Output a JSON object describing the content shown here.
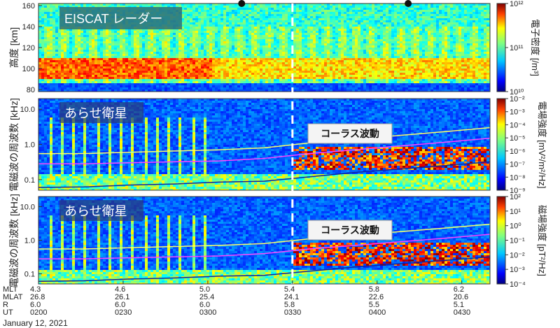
{
  "chart_data": [
    {
      "type": "heatmap",
      "title": "EISCAT レーダー",
      "ylabel": "高度 [km]",
      "yticks": [
        "160",
        "140",
        "120",
        "100",
        "80"
      ],
      "ylim": [
        78,
        162
      ],
      "colorbar": {
        "label": "電子密度 [/m³]",
        "scale": "log",
        "range": [
          10000000000.0,
          1000000000000.0
        ],
        "ticks": [
          "10¹²",
          "10¹¹",
          "10¹⁰"
        ]
      },
      "marker_times": [
        "0312",
        "0411"
      ]
    },
    {
      "type": "heatmap",
      "title": "あらせ衛星",
      "ylabel": "電磁波の周波数 [kHz]",
      "yscale": "log",
      "yticks": [
        "10.0",
        "1.0",
        "0.1"
      ],
      "ylim": [
        0.05,
        20
      ],
      "callout": "コーラス波動",
      "colorbar": {
        "label": "電場強度 [mV²/m²/Hz]",
        "scale": "log",
        "range": [
          1e-09,
          0.01
        ],
        "ticks": [
          "10⁻²",
          "10⁻³",
          "10⁻⁴",
          "10⁻⁵",
          "10⁻⁶",
          "10⁻⁷",
          "10⁻⁸",
          "10⁻⁹"
        ]
      }
    },
    {
      "type": "heatmap",
      "title": "あらせ衛星",
      "ylabel": "電磁波の周波数 [kHz]",
      "yscale": "log",
      "yticks": [
        "10.0",
        "1.0",
        "0.1"
      ],
      "ylim": [
        0.05,
        20
      ],
      "callout": "コーラス波動",
      "colorbar": {
        "label": "磁場強度 [pT²/Hz]",
        "scale": "log",
        "range": [
          0.0001,
          100.0
        ],
        "ticks": [
          "10²",
          "10¹",
          "10⁰",
          "10⁻¹",
          "10⁻²",
          "10⁻³",
          "10⁻⁴"
        ]
      }
    }
  ],
  "overlay_lines": {
    "yellow": [
      0.55,
      0.55,
      0.6,
      0.65,
      0.7,
      0.8,
      1.1,
      1.4,
      1.8,
      2.3,
      3.0
    ],
    "magenta": [
      0.28,
      0.28,
      0.3,
      0.32,
      0.34,
      0.4,
      0.55,
      0.7,
      0.9,
      1.15,
      1.5
    ],
    "blue": [
      0.06,
      0.062,
      0.07,
      0.075,
      0.085,
      0.09,
      0.12,
      0.16,
      0.2,
      0.25,
      0.32
    ]
  },
  "dashed_line_time": "0330",
  "ephemeris": {
    "row_labels": [
      "MLT",
      "MLAT",
      "R",
      "UT"
    ],
    "columns": [
      [
        "4.3",
        "26.8",
        "6.0",
        "0200"
      ],
      [
        "4.6",
        "26.1",
        "6.0",
        "0230"
      ],
      [
        "5.0",
        "25.4",
        "6.0",
        "0300"
      ],
      [
        "5.4",
        "24.1",
        "5.8",
        "0330"
      ],
      [
        "5.8",
        "22.6",
        "5.5",
        "0400"
      ],
      [
        "6.2",
        "20.6",
        "5.1",
        "0430"
      ]
    ]
  },
  "date": "January 12, 2021",
  "colors": {
    "yellow": "#ffff66",
    "magenta": "#ff44ff",
    "blue": "#1020a0",
    "dashed": "#ffffff"
  }
}
